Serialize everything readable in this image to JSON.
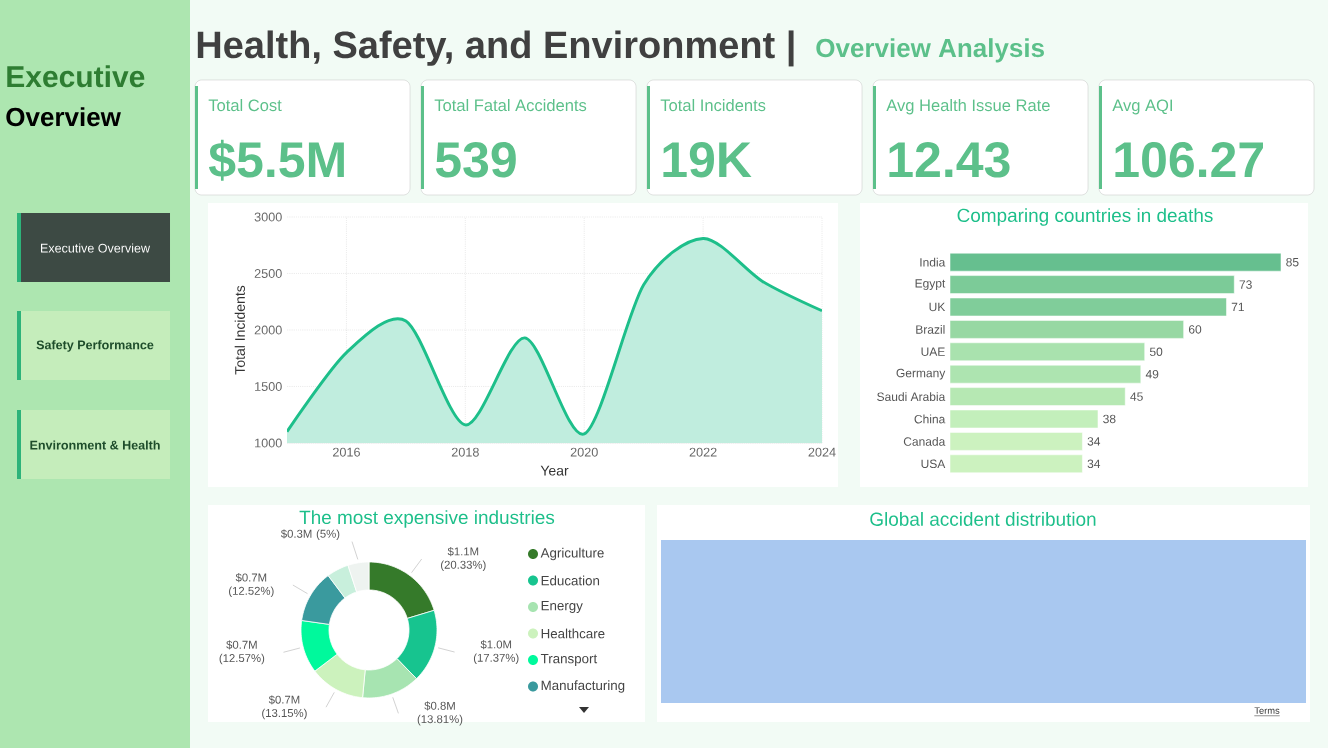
{
  "chart_data": [
    {
      "type": "other",
      "title": "Health, Safety, and Environment |",
      "subtitle": "Overview Analysis",
      "annotations": [
        "Executive",
        "Overview",
        "Executive Overview",
        "Safety Performance",
        "Environment & Health"
      ]
    },
    {
      "type": "other",
      "title": "Total Cost",
      "annotations": [
        "$5.5M"
      ]
    },
    {
      "type": "other",
      "title": "Total Fatal Accidents",
      "annotations": [
        "539"
      ]
    },
    {
      "type": "other",
      "title": "Total Incidents",
      "annotations": [
        "19K"
      ]
    },
    {
      "type": "other",
      "title": "Avg Health Issue Rate",
      "annotations": [
        "12.43"
      ]
    },
    {
      "type": "other",
      "title": "Avg AQI",
      "annotations": [
        "106.27"
      ]
    },
    {
      "type": "area",
      "xlabel": "Year",
      "ylabel": "Total Incidents",
      "x": [
        2015,
        2016,
        2017,
        2018,
        2019,
        2020,
        2021,
        2022,
        2023,
        2024
      ],
      "values": [
        1100,
        1800,
        2080,
        1160,
        1930,
        1080,
        2400,
        2810,
        2430,
        2170
      ],
      "color": "#1dbf8a",
      "xlim": [
        2015,
        2024
      ],
      "ylim": [
        1000,
        3000
      ],
      "xticks": [
        2016,
        2018,
        2020,
        2022,
        2024
      ],
      "yticks": [
        1000,
        1500,
        2000,
        2500,
        3000
      ],
      "grid": true
    },
    {
      "type": "bar",
      "orientation": "horizontal",
      "title": "Comparing countries in deaths",
      "categories": [
        "India",
        "Egypt",
        "UK",
        "Brazil",
        "UAE",
        "Germany",
        "Saudi Arabia",
        "China",
        "Canada",
        "USA"
      ],
      "values": [
        85,
        73,
        71,
        60,
        50,
        49,
        45,
        38,
        34,
        34
      ],
      "colors": [
        "#66bf8f",
        "#7ccb98",
        "#80cd9a",
        "#97d8a3",
        "#a9e2ae",
        "#ade4b0",
        "#b6e8b3",
        "#c3efbb",
        "#ccf2bf",
        "#ccf2bf"
      ],
      "data_labels": true
    },
    {
      "type": "donut",
      "title": "The most expensive industries",
      "categories": [
        "Agriculture",
        "Education",
        "Energy",
        "Healthcare",
        "Transport",
        "Manufacturing",
        null,
        null
      ],
      "values": [
        20.33,
        17.37,
        13.81,
        13.15,
        12.57,
        12.52,
        5.25,
        5
      ],
      "colors": [
        "#357a2a",
        "#17c48f",
        "#a7e4b1",
        "#ccf2bd",
        "#00f99c",
        "#3a9a9e",
        "#c8efdc",
        "#eef3f0"
      ],
      "value_labels": [
        "$1.1M (20.33%)",
        "$1.0M (17.37%)",
        "$0.8M (13.81%)",
        "$0.7M (13.15%)",
        "$0.7M (12.57%)",
        "$0.7M (12.52%)",
        null,
        "$0.3M (5%)"
      ],
      "legend": "right"
    },
    {
      "type": "other",
      "title": "Global accident distribution",
      "annotations": [
        "Terms"
      ]
    }
  ]
}
